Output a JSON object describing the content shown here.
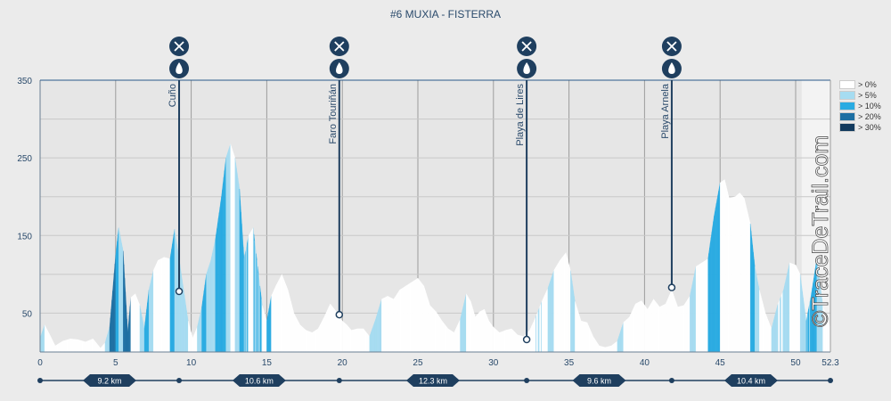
{
  "chart_data": {
    "type": "area",
    "title": "#6 MUXIA - FISTERRA",
    "xlim": [
      0,
      52.3
    ],
    "ylim": [
      0,
      350
    ],
    "x_ticks": [
      "0",
      "5",
      "10",
      "15",
      "20",
      "25",
      "30",
      "35",
      "40",
      "45",
      "50",
      "52.3"
    ],
    "y_ticks": [
      "350",
      "250",
      "150",
      "50"
    ],
    "legend": [
      {
        "label": "> 0%",
        "color": "#ffffff"
      },
      {
        "label": "> 5%",
        "color": "#a6dcf1"
      },
      {
        "label": "> 10%",
        "color": "#29abe2"
      },
      {
        "label": "> 20%",
        "color": "#1c6fa3"
      },
      {
        "label": "> 30%",
        "color": "#123a5e"
      }
    ],
    "profile": [
      [
        0,
        18
      ],
      [
        0.3,
        35
      ],
      [
        0.7,
        20
      ],
      [
        1,
        8
      ],
      [
        1.5,
        14
      ],
      [
        2,
        17
      ],
      [
        2.5,
        16
      ],
      [
        3,
        13
      ],
      [
        3.5,
        17
      ],
      [
        4,
        5
      ],
      [
        4.3,
        12
      ],
      [
        4.6,
        32
      ],
      [
        5,
        125
      ],
      [
        5.2,
        160
      ],
      [
        5.5,
        130
      ],
      [
        5.8,
        25
      ],
      [
        6,
        70
      ],
      [
        6.3,
        75
      ],
      [
        6.6,
        60
      ],
      [
        6.9,
        30
      ],
      [
        7.2,
        80
      ],
      [
        7.5,
        105
      ],
      [
        7.8,
        118
      ],
      [
        8.2,
        122
      ],
      [
        8.6,
        120
      ],
      [
        8.9,
        158
      ],
      [
        9.2,
        120
      ],
      [
        9.5,
        80
      ],
      [
        9.8,
        40
      ],
      [
        10.1,
        18
      ],
      [
        10.4,
        32
      ],
      [
        10.7,
        58
      ],
      [
        11,
        100
      ],
      [
        11.3,
        118
      ],
      [
        11.6,
        145
      ],
      [
        12,
        200
      ],
      [
        12.3,
        250
      ],
      [
        12.6,
        268
      ],
      [
        12.9,
        250
      ],
      [
        13.2,
        210
      ],
      [
        13.5,
        120
      ],
      [
        13.8,
        150
      ],
      [
        14.1,
        160
      ],
      [
        14.4,
        110
      ],
      [
        14.7,
        60
      ],
      [
        15,
        40
      ],
      [
        15.3,
        72
      ],
      [
        15.6,
        85
      ],
      [
        16,
        100
      ],
      [
        16.4,
        80
      ],
      [
        16.8,
        50
      ],
      [
        17.2,
        35
      ],
      [
        17.6,
        28
      ],
      [
        18,
        25
      ],
      [
        18.4,
        30
      ],
      [
        18.8,
        45
      ],
      [
        19.2,
        62
      ],
      [
        19.6,
        52
      ],
      [
        20,
        40
      ],
      [
        20.3,
        35
      ],
      [
        20.6,
        28
      ],
      [
        21,
        30
      ],
      [
        21.4,
        30
      ],
      [
        21.8,
        20
      ],
      [
        22.2,
        42
      ],
      [
        22.6,
        68
      ],
      [
        23,
        72
      ],
      [
        23.4,
        68
      ],
      [
        23.8,
        80
      ],
      [
        24.2,
        85
      ],
      [
        24.6,
        90
      ],
      [
        25,
        95
      ],
      [
        25.4,
        85
      ],
      [
        25.8,
        60
      ],
      [
        26.2,
        52
      ],
      [
        26.6,
        40
      ],
      [
        27,
        30
      ],
      [
        27.4,
        25
      ],
      [
        27.8,
        42
      ],
      [
        28.2,
        75
      ],
      [
        28.5,
        65
      ],
      [
        28.8,
        45
      ],
      [
        29.1,
        52
      ],
      [
        29.4,
        55
      ],
      [
        29.7,
        40
      ],
      [
        30,
        32
      ],
      [
        30.4,
        25
      ],
      [
        30.8,
        28
      ],
      [
        31.2,
        30
      ],
      [
        31.6,
        22
      ],
      [
        32,
        20
      ],
      [
        32.4,
        28
      ],
      [
        32.8,
        45
      ],
      [
        33.2,
        65
      ],
      [
        33.6,
        82
      ],
      [
        34,
        105
      ],
      [
        34.4,
        118
      ],
      [
        34.8,
        128
      ],
      [
        35.1,
        105
      ],
      [
        35.4,
        65
      ],
      [
        35.8,
        40
      ],
      [
        36.2,
        38
      ],
      [
        36.6,
        20
      ],
      [
        37,
        8
      ],
      [
        37.4,
        6
      ],
      [
        37.8,
        8
      ],
      [
        38.2,
        14
      ],
      [
        38.6,
        38
      ],
      [
        39,
        45
      ],
      [
        39.4,
        62
      ],
      [
        39.8,
        66
      ],
      [
        40.2,
        55
      ],
      [
        40.6,
        68
      ],
      [
        41,
        58
      ],
      [
        41.4,
        62
      ],
      [
        41.8,
        80
      ],
      [
        42.2,
        58
      ],
      [
        42.6,
        60
      ],
      [
        43,
        72
      ],
      [
        43.4,
        110
      ],
      [
        43.8,
        115
      ],
      [
        44.2,
        120
      ],
      [
        44.6,
        175
      ],
      [
        45,
        218
      ],
      [
        45.3,
        222
      ],
      [
        45.6,
        198
      ],
      [
        46,
        200
      ],
      [
        46.3,
        205
      ],
      [
        46.6,
        198
      ],
      [
        47,
        165
      ],
      [
        47.3,
        110
      ],
      [
        47.6,
        80
      ],
      [
        48,
        50
      ],
      [
        48.4,
        30
      ],
      [
        48.8,
        60
      ],
      [
        49.2,
        80
      ],
      [
        49.6,
        115
      ],
      [
        50,
        112
      ],
      [
        50.3,
        100
      ],
      [
        50.7,
        40
      ],
      [
        51,
        70
      ],
      [
        51.4,
        120
      ],
      [
        51.8,
        60
      ],
      [
        52.3,
        30
      ]
    ],
    "pois": [
      {
        "km": 9.2,
        "elev": 78,
        "label": "Cuño"
      },
      {
        "km": 19.8,
        "elev": 48,
        "label": "Faro Touriñán"
      },
      {
        "km": 32.2,
        "elev": 16,
        "label": "Playa de Lires"
      },
      {
        "km": 41.8,
        "elev": 83,
        "label": "Playa Arnela"
      }
    ],
    "segments": [
      {
        "from": 0,
        "to": 9.2,
        "label": "9.2 km"
      },
      {
        "from": 9.2,
        "to": 19.8,
        "label": "10.6 km"
      },
      {
        "from": 19.8,
        "to": 32.2,
        "label": "12.3 km"
      },
      {
        "from": 32.2,
        "to": 41.8,
        "label": "9.6 km"
      },
      {
        "from": 41.8,
        "to": 52.3,
        "label": "10.4 km"
      }
    ]
  },
  "watermark": "©TraceDeTrail.com"
}
